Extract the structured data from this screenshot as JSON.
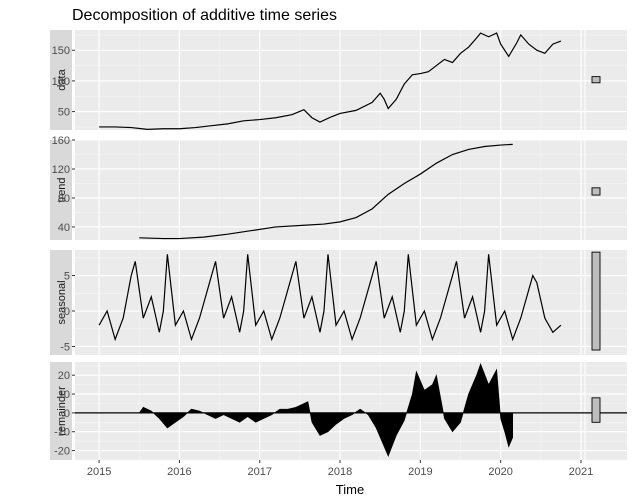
{
  "chart_data": {
    "type": "line",
    "title": "Decomposition of additive time series",
    "xlabel": "Time",
    "x_ticks": [
      "2015",
      "2016",
      "2017",
      "2018",
      "2019",
      "2020",
      "2021"
    ],
    "xlim": [
      2014.7,
      2021.05
    ],
    "panels": [
      {
        "name": "data",
        "ylim": [
          20,
          183
        ],
        "y_ticks": [
          50,
          100,
          150
        ],
        "scale_bar_range": [
          97,
          107
        ],
        "points": [
          [
            2015.0,
            25
          ],
          [
            2015.2,
            25
          ],
          [
            2015.4,
            24
          ],
          [
            2015.6,
            21
          ],
          [
            2015.8,
            22
          ],
          [
            2016.0,
            22
          ],
          [
            2016.2,
            24
          ],
          [
            2016.4,
            27
          ],
          [
            2016.6,
            30
          ],
          [
            2016.8,
            35
          ],
          [
            2017.0,
            37
          ],
          [
            2017.2,
            40
          ],
          [
            2017.4,
            45
          ],
          [
            2017.55,
            53
          ],
          [
            2017.65,
            40
          ],
          [
            2017.75,
            33
          ],
          [
            2017.9,
            42
          ],
          [
            2018.0,
            47
          ],
          [
            2018.2,
            52
          ],
          [
            2018.4,
            65
          ],
          [
            2018.5,
            80
          ],
          [
            2018.55,
            70
          ],
          [
            2018.6,
            55
          ],
          [
            2018.7,
            70
          ],
          [
            2018.8,
            95
          ],
          [
            2018.9,
            110
          ],
          [
            2019.0,
            112
          ],
          [
            2019.1,
            115
          ],
          [
            2019.2,
            125
          ],
          [
            2019.3,
            135
          ],
          [
            2019.4,
            130
          ],
          [
            2019.5,
            145
          ],
          [
            2019.6,
            155
          ],
          [
            2019.7,
            170
          ],
          [
            2019.75,
            178
          ],
          [
            2019.85,
            172
          ],
          [
            2019.95,
            178
          ],
          [
            2020.0,
            160
          ],
          [
            2020.1,
            140
          ],
          [
            2020.2,
            162
          ],
          [
            2020.25,
            175
          ],
          [
            2020.35,
            160
          ],
          [
            2020.45,
            150
          ],
          [
            2020.55,
            145
          ],
          [
            2020.65,
            160
          ],
          [
            2020.75,
            165
          ]
        ]
      },
      {
        "name": "trend",
        "ylim": [
          22,
          160
        ],
        "y_ticks": [
          40,
          80,
          120,
          160
        ],
        "scale_bar_range": [
          84,
          94
        ],
        "points": [
          [
            2015.5,
            25
          ],
          [
            2015.8,
            24
          ],
          [
            2016.0,
            24
          ],
          [
            2016.3,
            26
          ],
          [
            2016.6,
            30
          ],
          [
            2016.9,
            35
          ],
          [
            2017.2,
            40
          ],
          [
            2017.5,
            42
          ],
          [
            2017.8,
            44
          ],
          [
            2018.0,
            47
          ],
          [
            2018.2,
            53
          ],
          [
            2018.4,
            65
          ],
          [
            2018.6,
            85
          ],
          [
            2018.8,
            100
          ],
          [
            2019.0,
            113
          ],
          [
            2019.2,
            128
          ],
          [
            2019.4,
            140
          ],
          [
            2019.6,
            147
          ],
          [
            2019.8,
            151
          ],
          [
            2020.0,
            153
          ],
          [
            2020.15,
            154
          ]
        ]
      },
      {
        "name": "seasonal",
        "ylim": [
          -6.2,
          8.6
        ],
        "y_ticks": [
          -5,
          0,
          5
        ],
        "scale_bar_range": [
          -5.5,
          8.3
        ],
        "points": [
          [
            2015.0,
            -2
          ],
          [
            2015.1,
            0
          ],
          [
            2015.2,
            -4
          ],
          [
            2015.3,
            -1
          ],
          [
            2015.4,
            5
          ],
          [
            2015.45,
            7
          ],
          [
            2015.55,
            -1
          ],
          [
            2015.65,
            2
          ],
          [
            2015.75,
            -3
          ],
          [
            2015.8,
            0
          ],
          [
            2015.85,
            8
          ],
          [
            2015.95,
            -2
          ],
          [
            2016.05,
            0
          ],
          [
            2016.15,
            -4
          ],
          [
            2016.25,
            -1
          ],
          [
            2016.4,
            5
          ],
          [
            2016.45,
            7
          ],
          [
            2016.55,
            -1
          ],
          [
            2016.65,
            2
          ],
          [
            2016.75,
            -3
          ],
          [
            2016.8,
            0
          ],
          [
            2016.85,
            8
          ],
          [
            2016.95,
            -2
          ],
          [
            2017.05,
            0
          ],
          [
            2017.15,
            -4
          ],
          [
            2017.25,
            -1
          ],
          [
            2017.4,
            5
          ],
          [
            2017.45,
            7
          ],
          [
            2017.55,
            -1
          ],
          [
            2017.65,
            2
          ],
          [
            2017.75,
            -3
          ],
          [
            2017.8,
            0
          ],
          [
            2017.85,
            8
          ],
          [
            2017.95,
            -2
          ],
          [
            2018.05,
            0
          ],
          [
            2018.15,
            -4
          ],
          [
            2018.25,
            -1
          ],
          [
            2018.4,
            5
          ],
          [
            2018.45,
            7
          ],
          [
            2018.55,
            -1
          ],
          [
            2018.65,
            2
          ],
          [
            2018.75,
            -3
          ],
          [
            2018.8,
            0
          ],
          [
            2018.85,
            8
          ],
          [
            2018.95,
            -2
          ],
          [
            2019.05,
            0
          ],
          [
            2019.15,
            -4
          ],
          [
            2019.25,
            -1
          ],
          [
            2019.4,
            5
          ],
          [
            2019.45,
            7
          ],
          [
            2019.55,
            -1
          ],
          [
            2019.65,
            2
          ],
          [
            2019.75,
            -3
          ],
          [
            2019.8,
            0
          ],
          [
            2019.85,
            8
          ],
          [
            2019.95,
            -2
          ],
          [
            2020.05,
            0
          ],
          [
            2020.15,
            -4
          ],
          [
            2020.25,
            -1
          ],
          [
            2020.4,
            5
          ],
          [
            2020.45,
            4
          ],
          [
            2020.55,
            -1
          ],
          [
            2020.65,
            -3
          ],
          [
            2020.75,
            -2
          ]
        ]
      },
      {
        "name": "remainder",
        "ylim": [
          -25,
          27
        ],
        "y_ticks": [
          -20,
          -10,
          0,
          10,
          20
        ],
        "scale_bar_range": [
          -5,
          8
        ],
        "points": [
          [
            2015.5,
            0
          ],
          [
            2015.55,
            3
          ],
          [
            2015.65,
            1
          ],
          [
            2015.75,
            -3
          ],
          [
            2015.85,
            -8
          ],
          [
            2015.95,
            -5
          ],
          [
            2016.05,
            -2
          ],
          [
            2016.15,
            2
          ],
          [
            2016.25,
            1
          ],
          [
            2016.35,
            -1
          ],
          [
            2016.45,
            -3
          ],
          [
            2016.55,
            -1
          ],
          [
            2016.65,
            -3
          ],
          [
            2016.75,
            -5
          ],
          [
            2016.85,
            -2
          ],
          [
            2016.95,
            -5
          ],
          [
            2017.05,
            -3
          ],
          [
            2017.15,
            -1
          ],
          [
            2017.25,
            2
          ],
          [
            2017.35,
            2
          ],
          [
            2017.45,
            3
          ],
          [
            2017.55,
            5
          ],
          [
            2017.6,
            6
          ],
          [
            2017.65,
            -5
          ],
          [
            2017.75,
            -12
          ],
          [
            2017.85,
            -10
          ],
          [
            2017.95,
            -6
          ],
          [
            2018.05,
            -3
          ],
          [
            2018.15,
            -1
          ],
          [
            2018.25,
            2
          ],
          [
            2018.35,
            -1
          ],
          [
            2018.45,
            -8
          ],
          [
            2018.55,
            -18
          ],
          [
            2018.6,
            -23
          ],
          [
            2018.7,
            -12
          ],
          [
            2018.8,
            -4
          ],
          [
            2018.9,
            10
          ],
          [
            2018.95,
            22
          ],
          [
            2019.05,
            12
          ],
          [
            2019.15,
            15
          ],
          [
            2019.2,
            20
          ],
          [
            2019.3,
            -3
          ],
          [
            2019.4,
            -10
          ],
          [
            2019.5,
            -5
          ],
          [
            2019.6,
            10
          ],
          [
            2019.7,
            20
          ],
          [
            2019.75,
            26
          ],
          [
            2019.85,
            15
          ],
          [
            2019.95,
            23
          ],
          [
            2020.0,
            -3
          ],
          [
            2020.05,
            -10
          ],
          [
            2020.1,
            -18
          ],
          [
            2020.15,
            -13
          ]
        ]
      }
    ]
  }
}
